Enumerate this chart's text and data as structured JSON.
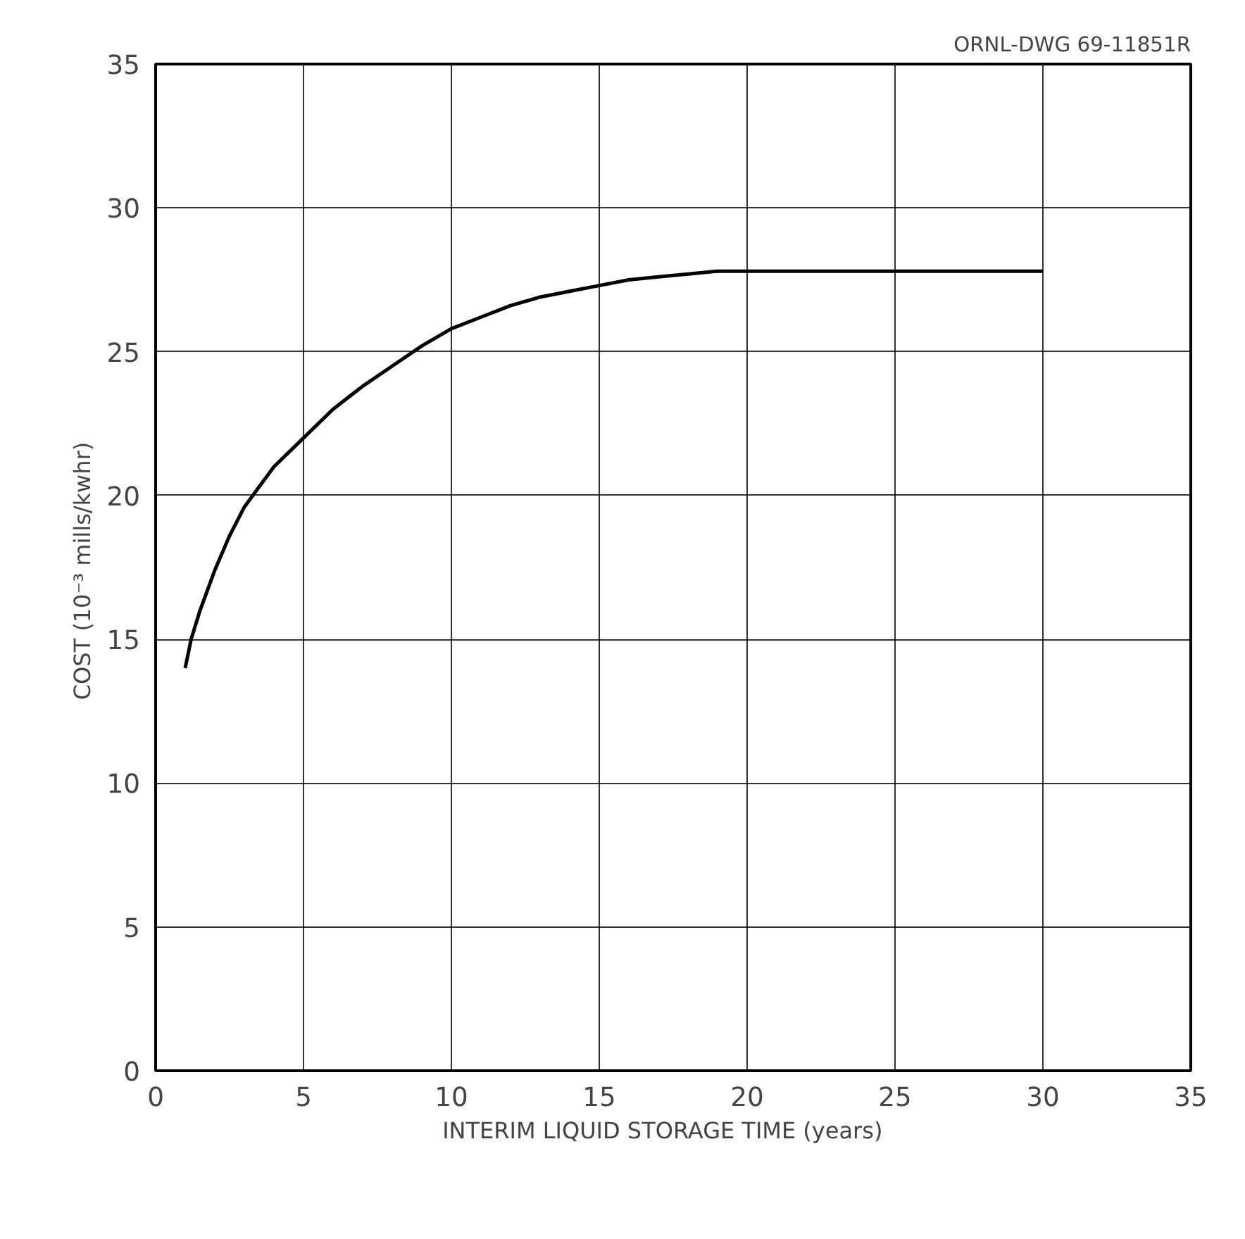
{
  "chart_data": {
    "type": "line",
    "xlabel": "INTERIM  LIQUID  STORAGE  TIME (years)",
    "ylabel": "COST  (10⁻³ mills/kwhr)",
    "annotations": [
      "ORNL-DWG 69-11851R"
    ],
    "x": [
      1,
      1.2,
      1.5,
      2,
      2.5,
      3,
      3.5,
      4,
      5,
      6,
      7,
      8,
      9,
      10,
      11,
      12,
      13,
      14,
      15,
      16,
      17,
      18,
      19,
      20,
      21,
      25,
      30
    ],
    "series": [
      {
        "color": "#000000",
        "values": [
          14,
          15,
          16,
          17.4,
          18.6,
          19.6,
          20.3,
          21,
          22,
          23,
          23.8,
          24.5,
          25.2,
          25.8,
          26.2,
          26.6,
          26.9,
          27.1,
          27.3,
          27.5,
          27.6,
          27.7,
          27.8,
          27.8,
          27.8,
          27.8,
          27.8
        ]
      }
    ],
    "xlim": [
      0,
      35
    ],
    "ylim": [
      0,
      35
    ],
    "xticks": [
      0,
      5,
      10,
      15,
      20,
      25,
      30,
      35
    ],
    "yticks": [
      0,
      5,
      10,
      15,
      20,
      25,
      30,
      35
    ],
    "grid": true,
    "marker": "none",
    "line_style": "solid"
  }
}
